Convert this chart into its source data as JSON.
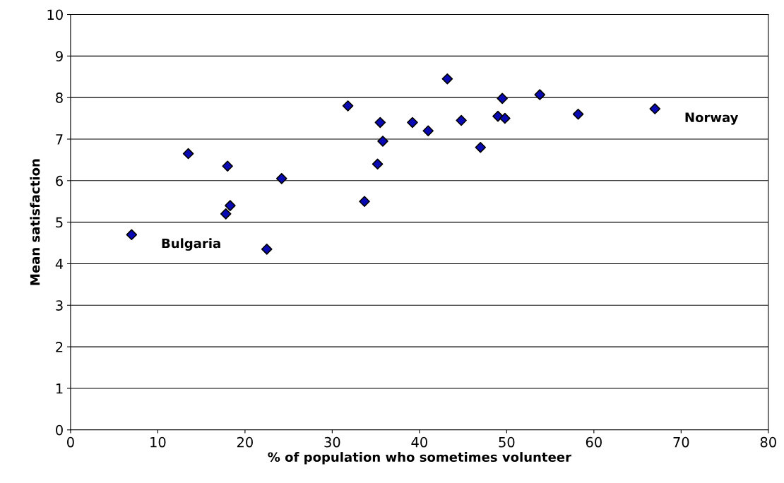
{
  "chart_data": {
    "type": "scatter",
    "xlabel": "% of population who sometimes volunteer",
    "ylabel": "Mean satisfaction",
    "x": [
      7.0,
      13.5,
      18.0,
      17.8,
      18.3,
      22.5,
      24.2,
      31.8,
      33.7,
      35.2,
      35.5,
      35.8,
      39.2,
      41.0,
      43.2,
      44.8,
      47.0,
      49.0,
      49.5,
      49.8,
      53.8,
      58.2,
      67.0
    ],
    "values": [
      4.7,
      6.65,
      6.35,
      5.2,
      5.4,
      4.35,
      6.05,
      7.8,
      5.5,
      6.4,
      7.4,
      6.95,
      7.4,
      7.2,
      8.45,
      7.45,
      6.8,
      7.55,
      7.98,
      7.5,
      8.07,
      7.6,
      7.73
    ],
    "color": "#0a0ab4",
    "marker": "diamond",
    "xlim": [
      0,
      80
    ],
    "xticks": [
      0,
      10,
      20,
      30,
      40,
      50,
      60,
      70,
      80
    ],
    "ylim": [
      0,
      10
    ],
    "yticks": [
      0,
      1,
      2,
      3,
      4,
      5,
      6,
      7,
      8,
      9,
      10
    ],
    "grid": "y",
    "annotations": [
      {
        "text": "Bulgaria",
        "x": 7.0,
        "y": 4.7
      },
      {
        "text": "Norway",
        "x": 67.0,
        "y": 7.73
      }
    ]
  }
}
